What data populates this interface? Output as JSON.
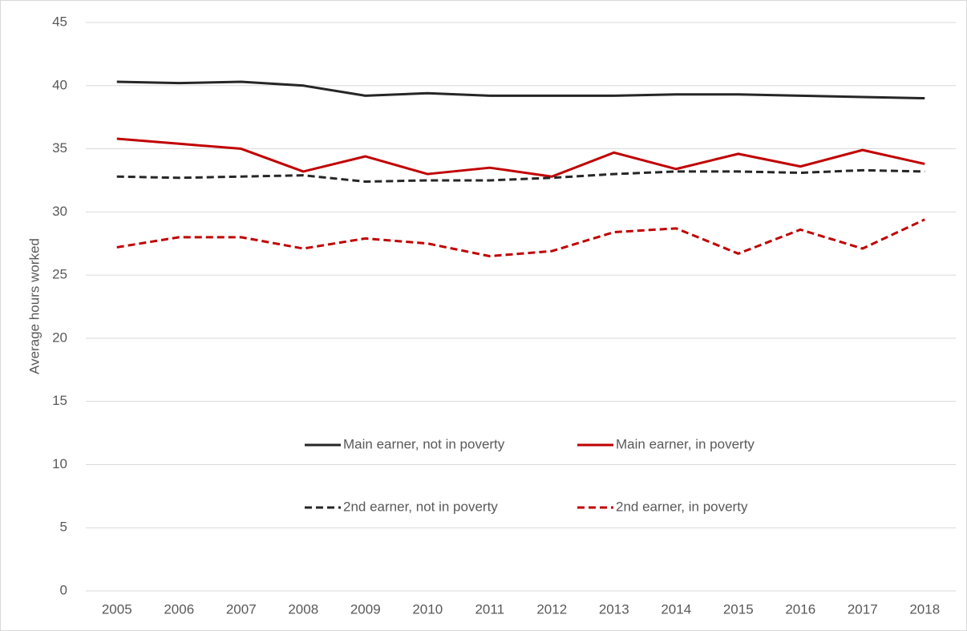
{
  "chart_data": {
    "type": "line",
    "y_label": "Average hours worked",
    "categories": [
      "2005",
      "2006",
      "2007",
      "2008",
      "2009",
      "2010",
      "2011",
      "2012",
      "2013",
      "2014",
      "2015",
      "2016",
      "2017",
      "2018"
    ],
    "series": [
      {
        "name": "Main earner,  not in poverty",
        "color": "#262626",
        "dashed": false,
        "values": [
          40.3,
          40.2,
          40.3,
          40.0,
          39.2,
          39.4,
          39.2,
          39.2,
          39.2,
          39.3,
          39.3,
          39.2,
          39.1,
          39.0
        ]
      },
      {
        "name": "Main earner,  in poverty",
        "color": "#c00000",
        "dashed": false,
        "values": [
          35.8,
          35.4,
          35.0,
          33.2,
          34.4,
          33.0,
          33.5,
          32.8,
          34.7,
          33.4,
          34.6,
          33.6,
          34.9,
          33.8
        ]
      },
      {
        "name": "2nd earner,  not in poverty",
        "color": "#262626",
        "dashed": true,
        "values": [
          32.8,
          32.7,
          32.8,
          32.9,
          32.4,
          32.5,
          32.5,
          32.7,
          33.0,
          33.2,
          33.2,
          33.1,
          33.3,
          33.2
        ]
      },
      {
        "name": "2nd earner,  in poverty",
        "color": "#c00000",
        "dashed": true,
        "values": [
          27.2,
          28.0,
          28.0,
          27.1,
          27.9,
          27.5,
          26.5,
          26.9,
          28.4,
          28.7,
          26.7,
          28.6,
          27.1,
          29.4
        ]
      }
    ],
    "ylim": [
      0,
      45
    ],
    "yticks": [
      0,
      5,
      10,
      15,
      20,
      25,
      30,
      35,
      40,
      45
    ],
    "grid": true,
    "legend": "center"
  }
}
